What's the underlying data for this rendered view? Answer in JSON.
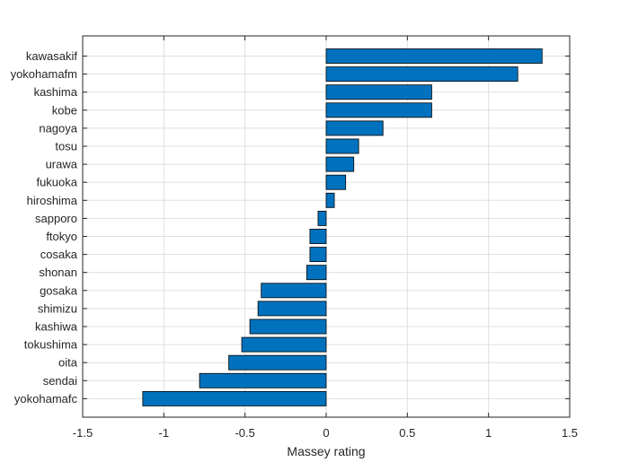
{
  "chart_data": {
    "type": "bar",
    "orientation": "horizontal",
    "categories": [
      "kawasakif",
      "yokohamafm",
      "kashima",
      "kobe",
      "nagoya",
      "tosu",
      "urawa",
      "fukuoka",
      "hiroshima",
      "sapporo",
      "ftokyo",
      "cosaka",
      "shonan",
      "gosaka",
      "shimizu",
      "kashiwa",
      "tokushima",
      "oita",
      "sendai",
      "yokohamafc"
    ],
    "values": [
      1.33,
      1.18,
      0.65,
      0.65,
      0.35,
      0.2,
      0.17,
      0.12,
      0.05,
      -0.05,
      -0.1,
      -0.1,
      -0.12,
      -0.4,
      -0.42,
      -0.47,
      -0.52,
      -0.6,
      -0.78,
      -1.13
    ],
    "xlim": [
      -1.5,
      1.5
    ],
    "xticks": [
      -1.5,
      -1,
      -0.5,
      0,
      0.5,
      1,
      1.5
    ],
    "xtick_labels": [
      "-1.5",
      "-1",
      "-0.5",
      "0",
      "0.5",
      "1",
      "1.5"
    ],
    "xlabel": "Massey rating",
    "ylabel": "",
    "title": "",
    "grid": true,
    "bar_color": "#0072BD",
    "bar_edge_color": "#000000"
  }
}
